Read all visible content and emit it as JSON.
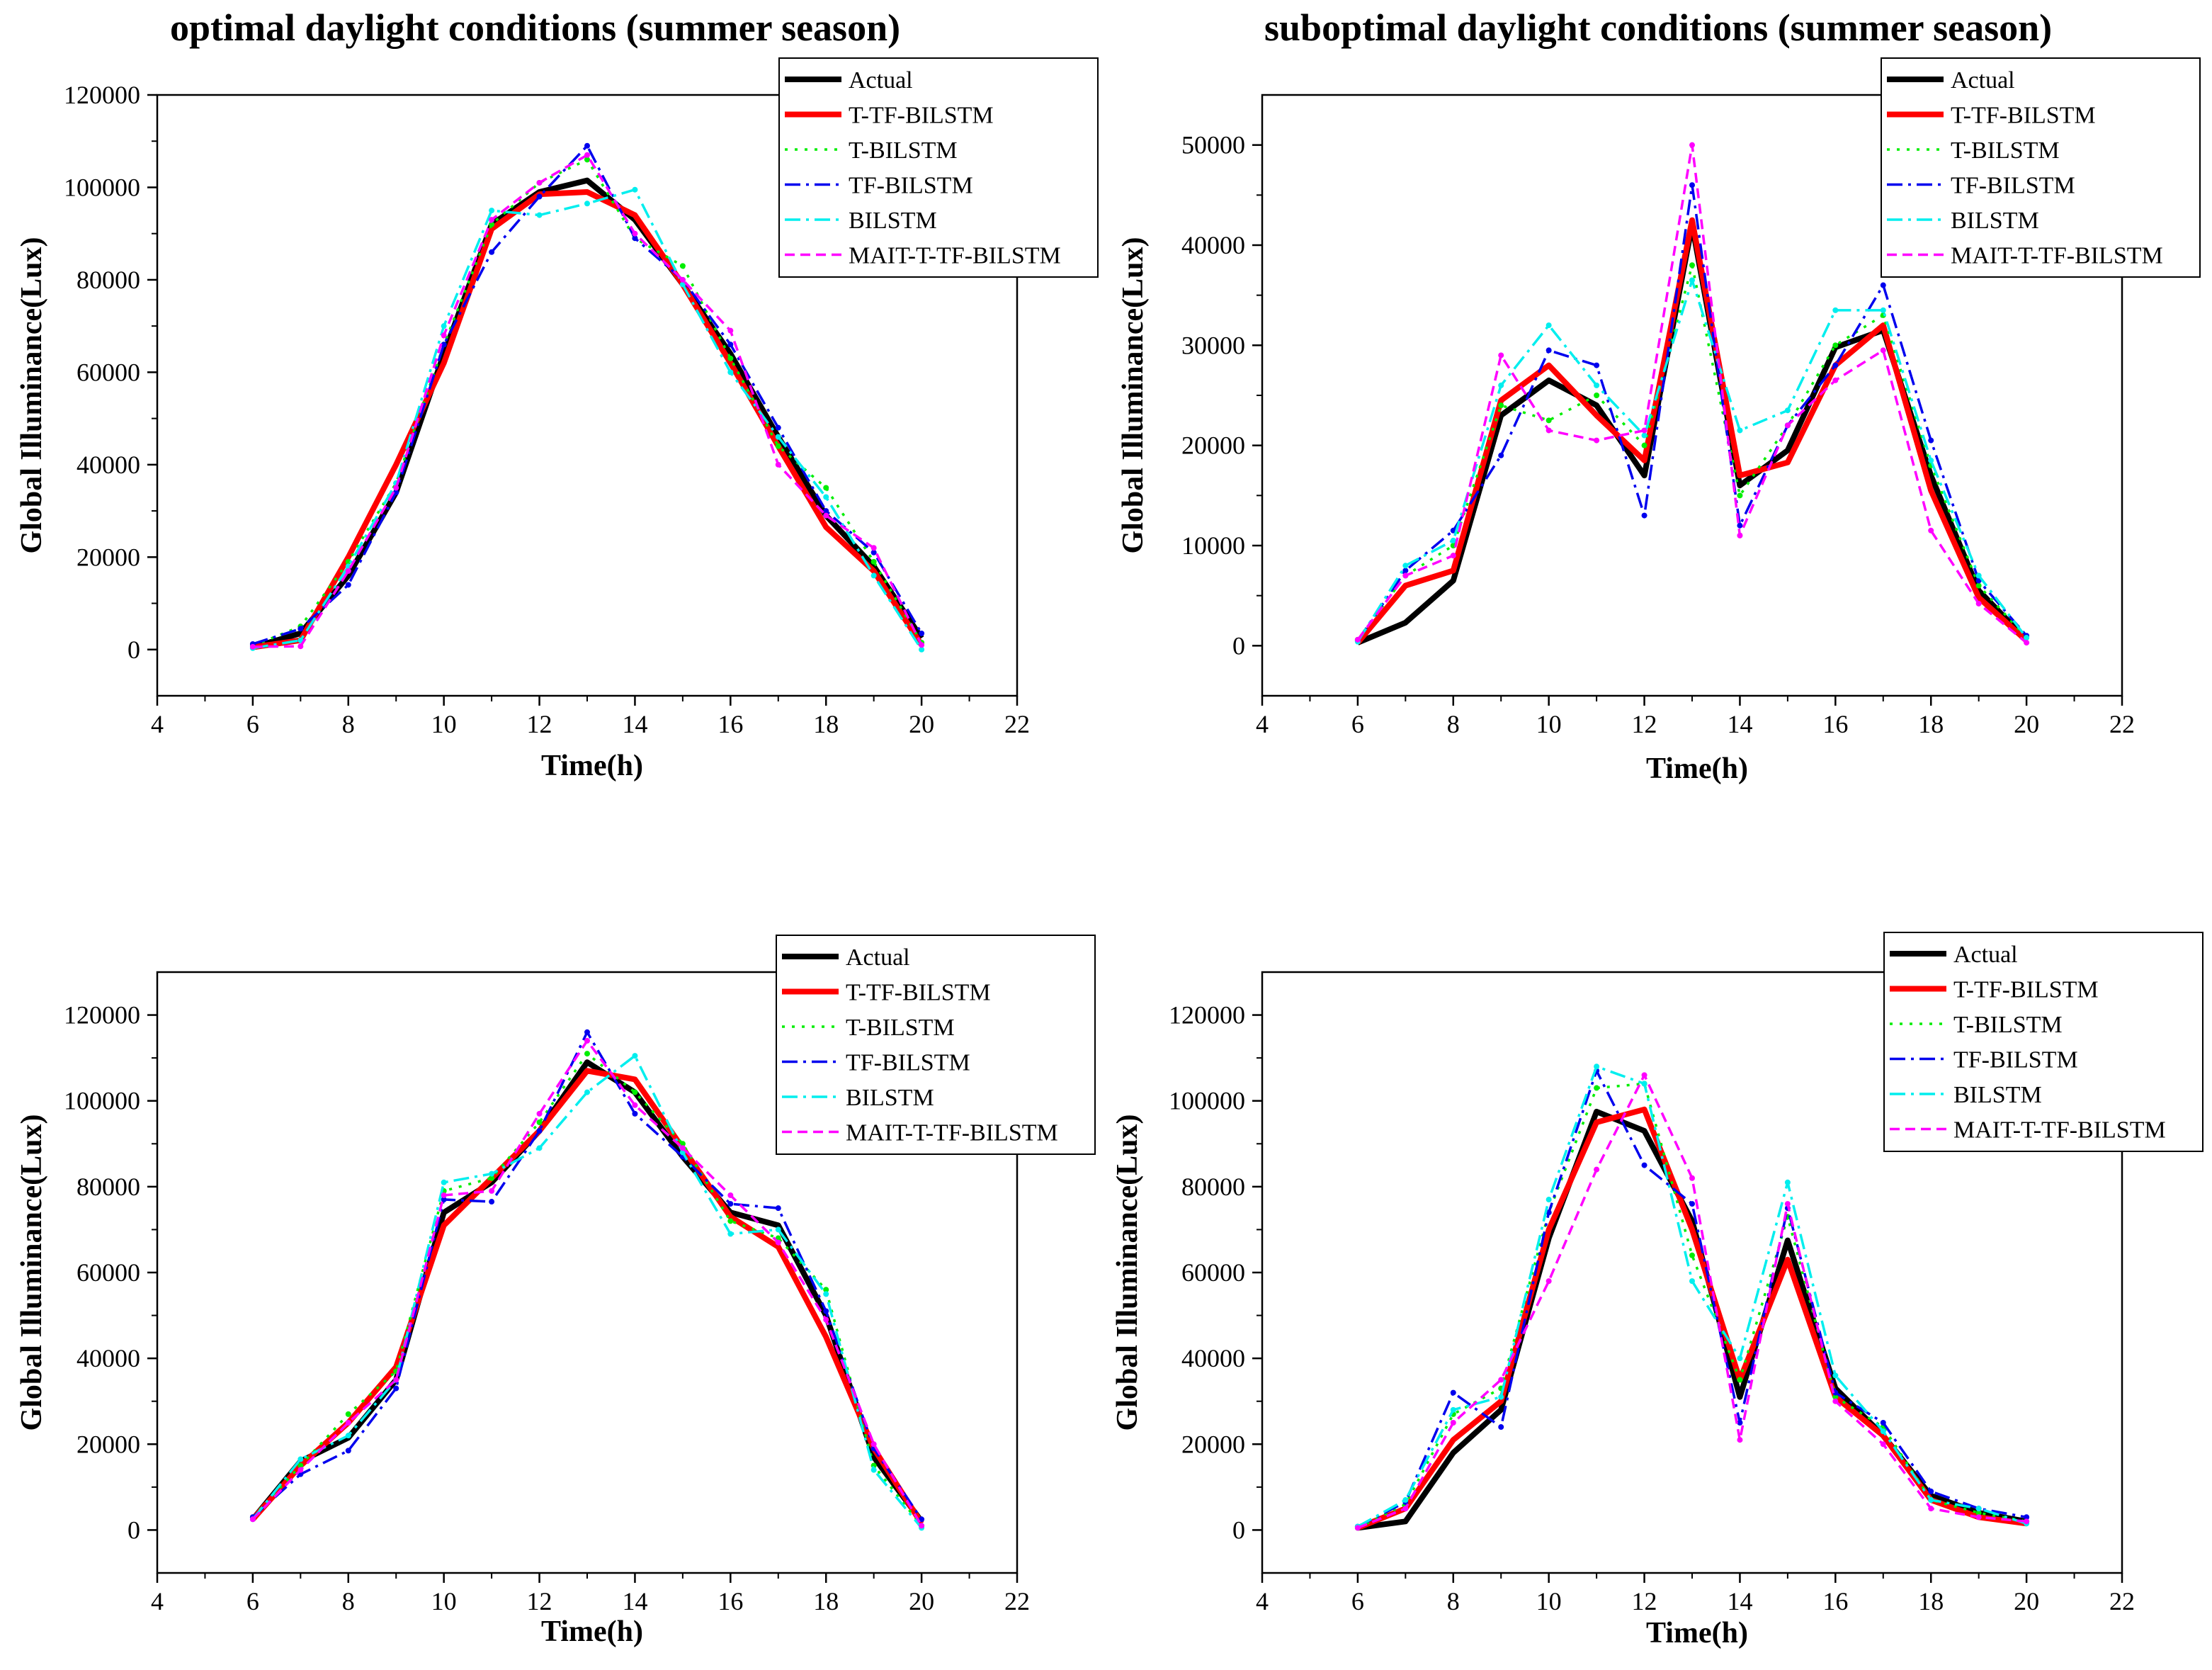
{
  "titles": {
    "left": "optimal daylight conditions (summer season)",
    "right": "suboptimal daylight conditions (summer season)"
  },
  "series_styles": [
    {
      "name": "Actual",
      "color": "#000000",
      "dash": "solid",
      "width": "thick"
    },
    {
      "name": "T-TF-BILSTM",
      "color": "#ff0000",
      "dash": "solid",
      "width": "thick"
    },
    {
      "name": "T-BILSTM",
      "color": "#00ee00",
      "dash": "dot",
      "width": "thin"
    },
    {
      "name": "TF-BILSTM",
      "color": "#0000ee",
      "dash": "dashdot",
      "width": "thin"
    },
    {
      "name": "BILSTM",
      "color": "#00eeee",
      "dash": "dashdot",
      "width": "thin"
    },
    {
      "name": "MAIT-T-TF-BILSTM",
      "color": "#ff00ff",
      "dash": "dash",
      "width": "thin"
    }
  ],
  "chart_data": [
    {
      "id": "top-left",
      "type": "line",
      "title": "optimal daylight conditions (summer season)",
      "xlabel": "Time(h)",
      "ylabel": "Global Illuminance(Lux)",
      "xlim": [
        4,
        22
      ],
      "ylim": [
        -10000,
        120000
      ],
      "xticks": [
        4,
        6,
        8,
        10,
        12,
        14,
        16,
        18,
        20,
        22
      ],
      "yticks": [
        0,
        20000,
        40000,
        60000,
        80000,
        100000,
        120000
      ],
      "legend": "top-right",
      "x": [
        6,
        7,
        8,
        9,
        10,
        11,
        12,
        13,
        14,
        15,
        16,
        17,
        18,
        19,
        20
      ],
      "series": [
        {
          "name": "Actual",
          "values": [
            500,
            3500,
            16000,
            34000,
            64000,
            92000,
            99000,
            101500,
            93000,
            79000,
            64000,
            46000,
            29000,
            18000,
            2500
          ]
        },
        {
          "name": "T-TF-BILSTM",
          "values": [
            500,
            2000,
            20000,
            40000,
            62000,
            91000,
            98500,
            99000,
            94000,
            79000,
            62000,
            44000,
            26500,
            17000,
            1000
          ]
        },
        {
          "name": "T-BILSTM",
          "values": [
            800,
            5000,
            19000,
            36000,
            66000,
            92000,
            101000,
            106000,
            89000,
            83000,
            63000,
            44000,
            35000,
            19000,
            1500
          ]
        },
        {
          "name": "TF-BILSTM",
          "values": [
            1200,
            4500,
            14000,
            34000,
            66000,
            86000,
            98000,
            109000,
            89000,
            80000,
            66000,
            48000,
            30000,
            21000,
            3500
          ]
        },
        {
          "name": "BILSTM",
          "values": [
            300,
            2000,
            18000,
            36000,
            70000,
            95000,
            94000,
            96500,
            99500,
            79000,
            60000,
            46000,
            33000,
            16000,
            0
          ]
        },
        {
          "name": "MAIT-T-TF-BILSTM",
          "values": [
            600,
            700,
            17000,
            35000,
            68000,
            93000,
            101000,
            107000,
            90000,
            80000,
            69000,
            40000,
            29000,
            22000,
            1000
          ]
        }
      ]
    },
    {
      "id": "top-right",
      "type": "line",
      "title": "suboptimal daylight conditions (summer season)",
      "xlabel": "Time(h)",
      "ylabel": "Global Illuminance(Lux)",
      "xlim": [
        4,
        22
      ],
      "ylim": [
        -5000,
        55000
      ],
      "xticks": [
        4,
        6,
        8,
        10,
        12,
        14,
        16,
        18,
        20,
        22
      ],
      "yticks": [
        0,
        10000,
        20000,
        30000,
        40000,
        50000
      ],
      "legend": "top-right",
      "x": [
        6,
        7,
        8,
        9,
        10,
        11,
        12,
        13,
        14,
        15,
        16,
        17,
        18,
        19,
        20
      ],
      "series": [
        {
          "name": "Actual",
          "values": [
            300,
            2300,
            6500,
            23000,
            26500,
            24000,
            17000,
            42000,
            16000,
            19500,
            29800,
            31500,
            17000,
            5500,
            600
          ]
        },
        {
          "name": "T-TF-BILSTM",
          "values": [
            300,
            6000,
            7500,
            24500,
            28000,
            23000,
            18500,
            42500,
            17000,
            18300,
            28000,
            32000,
            15500,
            4800,
            500
          ]
        },
        {
          "name": "T-BILSTM",
          "values": [
            600,
            7000,
            10000,
            24000,
            22500,
            25000,
            20000,
            38000,
            15000,
            22000,
            30000,
            33000,
            18000,
            6000,
            800
          ]
        },
        {
          "name": "TF-BILSTM",
          "values": [
            500,
            7500,
            11500,
            19000,
            29500,
            28000,
            13000,
            46000,
            12000,
            22000,
            28000,
            36000,
            20500,
            6500,
            1000
          ]
        },
        {
          "name": "BILSTM",
          "values": [
            400,
            8000,
            10500,
            26000,
            32000,
            26000,
            21000,
            36500,
            21500,
            23500,
            33500,
            33500,
            18500,
            7000,
            800
          ]
        },
        {
          "name": "MAIT-T-TF-BILSTM",
          "values": [
            600,
            7000,
            9000,
            29000,
            21500,
            20500,
            21500,
            50000,
            11000,
            22000,
            26500,
            29500,
            11500,
            4200,
            300
          ]
        }
      ]
    },
    {
      "id": "bottom-left",
      "type": "line",
      "title": "",
      "xlabel": "Time(h)",
      "ylabel": "Global Illuminance(Lux)",
      "xlim": [
        4,
        22
      ],
      "ylim": [
        -10000,
        130000
      ],
      "xticks": [
        4,
        6,
        8,
        10,
        12,
        14,
        16,
        18,
        20,
        22
      ],
      "yticks": [
        0,
        20000,
        40000,
        60000,
        80000,
        100000,
        120000
      ],
      "legend": "top-right",
      "x": [
        6,
        7,
        8,
        9,
        10,
        11,
        12,
        13,
        14,
        15,
        16,
        17,
        18,
        19,
        20
      ],
      "series": [
        {
          "name": "Actual",
          "values": [
            2500,
            16000,
            21500,
            35000,
            74000,
            81000,
            93000,
            109000,
            102000,
            87000,
            74000,
            71000,
            50000,
            17000,
            2000
          ]
        },
        {
          "name": "T-TF-BILSTM",
          "values": [
            2500,
            15000,
            25000,
            38000,
            71000,
            82000,
            93000,
            107000,
            105000,
            89000,
            73000,
            66000,
            45000,
            19000,
            1500
          ]
        },
        {
          "name": "T-BILSTM",
          "values": [
            3000,
            15000,
            27000,
            37000,
            79000,
            82000,
            95000,
            111000,
            102000,
            90000,
            72000,
            68000,
            56000,
            15000,
            1000
          ]
        },
        {
          "name": "TF-BILSTM",
          "values": [
            3000,
            13000,
            18500,
            33000,
            77000,
            76500,
            93000,
            116000,
            97000,
            87000,
            76000,
            75000,
            51000,
            19000,
            2500
          ]
        },
        {
          "name": "BILSTM",
          "values": [
            2500,
            16500,
            22000,
            35000,
            81000,
            83000,
            89000,
            102000,
            110500,
            88000,
            69000,
            70000,
            55000,
            14000,
            500
          ]
        },
        {
          "name": "MAIT-T-TF-BILSTM",
          "values": [
            2500,
            14000,
            25000,
            35000,
            78000,
            79000,
            97000,
            114000,
            99000,
            89000,
            78000,
            67000,
            49000,
            20000,
            1000
          ]
        }
      ]
    },
    {
      "id": "bottom-right",
      "type": "line",
      "title": "",
      "xlabel": "Time(h)",
      "ylabel": "Global Illuminance(Lux)",
      "xlim": [
        4,
        22
      ],
      "ylim": [
        -10000,
        130000
      ],
      "xticks": [
        4,
        6,
        8,
        10,
        12,
        14,
        16,
        18,
        20,
        22
      ],
      "yticks": [
        0,
        20000,
        40000,
        60000,
        80000,
        100000,
        120000
      ],
      "legend": "top-right",
      "x": [
        6,
        7,
        8,
        9,
        10,
        11,
        12,
        13,
        14,
        15,
        16,
        17,
        18,
        19,
        20
      ],
      "series": [
        {
          "name": "Actual",
          "values": [
            500,
            2000,
            18000,
            28000,
            68000,
            97500,
            93000,
            72000,
            31000,
            67500,
            33000,
            22000,
            8000,
            4000,
            2000
          ]
        },
        {
          "name": "T-TF-BILSTM",
          "values": [
            500,
            5000,
            21000,
            30000,
            70000,
            95000,
            98000,
            70000,
            35000,
            63000,
            31000,
            22000,
            7000,
            3000,
            1500
          ]
        },
        {
          "name": "T-BILSTM",
          "values": [
            500,
            6000,
            27000,
            33000,
            74000,
            103000,
            104000,
            64000,
            35000,
            73000,
            31000,
            24000,
            7000,
            4000,
            2000
          ]
        },
        {
          "name": "TF-BILSTM",
          "values": [
            800,
            6500,
            32000,
            24000,
            74000,
            107000,
            85000,
            76000,
            25000,
            75000,
            32000,
            25000,
            9000,
            5000,
            3000
          ]
        },
        {
          "name": "BILSTM",
          "values": [
            800,
            7000,
            28000,
            31000,
            77000,
            108000,
            104000,
            58000,
            40000,
            81000,
            36000,
            23000,
            7000,
            5000,
            1500
          ]
        },
        {
          "name": "MAIT-T-TF-BILSTM",
          "values": [
            500,
            5000,
            25000,
            35000,
            58000,
            84000,
            106000,
            82000,
            21000,
            76000,
            30000,
            20000,
            5000,
            3000,
            2000
          ]
        }
      ]
    }
  ]
}
